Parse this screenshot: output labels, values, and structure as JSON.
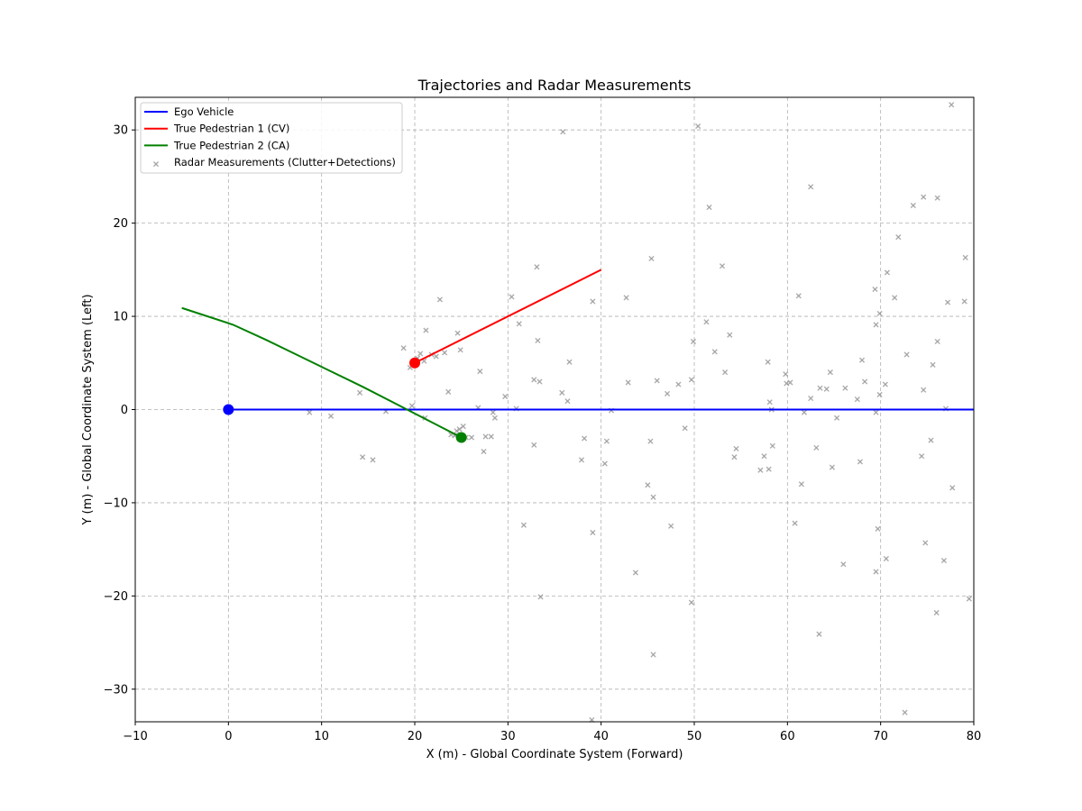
{
  "chart_data": {
    "type": "scatter",
    "title": "Trajectories and Radar Measurements",
    "xlabel": "X (m) - Global Coordinate System (Forward)",
    "ylabel": "Y (m) - Global Coordinate System (Left)",
    "xlim": [
      -10,
      80
    ],
    "ylim": [
      -33.5,
      33.5
    ],
    "xticks": [
      -10,
      0,
      10,
      20,
      30,
      40,
      50,
      60,
      70,
      80
    ],
    "yticks": [
      -30,
      -20,
      -10,
      0,
      10,
      20,
      30
    ],
    "xtick_labels": [
      "−10",
      "0",
      "10",
      "20",
      "30",
      "40",
      "50",
      "60",
      "70",
      "80"
    ],
    "ytick_labels": [
      "−30",
      "−20",
      "−10",
      "0",
      "10",
      "20",
      "30"
    ],
    "grid": true,
    "legend_position": "top-left",
    "series": [
      {
        "name": "Ego Vehicle",
        "kind": "line",
        "color": "#0000ff",
        "x": [
          0,
          80
        ],
        "y": [
          0,
          0
        ],
        "marker_at": [
          0,
          0
        ]
      },
      {
        "name": "True Pedestrian 1 (CV)",
        "kind": "line",
        "color": "#ff0000",
        "x": [
          20,
          40
        ],
        "y": [
          5,
          15
        ],
        "marker_at": [
          20,
          5
        ]
      },
      {
        "name": "True Pedestrian 2 (CA)",
        "kind": "line",
        "color": "#008000",
        "x": [
          25,
          21.5,
          18,
          14.5,
          11,
          7.5,
          4,
          0.5,
          -5
        ],
        "y": [
          -3,
          -1.2,
          0.6,
          2.4,
          4.1,
          5.8,
          7.5,
          9.1,
          10.9
        ],
        "marker_at": [
          25,
          -3
        ]
      },
      {
        "name": "Radar Measurements (Clutter+Detections)",
        "kind": "scatter",
        "color": "#999999",
        "points": [
          [
            77.6,
            32.7
          ],
          [
            50.4,
            30.4
          ],
          [
            35.9,
            29.8
          ],
          [
            62.5,
            23.9
          ],
          [
            74.6,
            22.8
          ],
          [
            76.1,
            22.7
          ],
          [
            73.5,
            21.9
          ],
          [
            51.6,
            21.7
          ],
          [
            71.9,
            18.5
          ],
          [
            79.1,
            16.3
          ],
          [
            45.4,
            16.2
          ],
          [
            53.0,
            15.4
          ],
          [
            33.1,
            15.3
          ],
          [
            70.7,
            14.7
          ],
          [
            69.4,
            12.9
          ],
          [
            61.2,
            12.2
          ],
          [
            30.4,
            12.1
          ],
          [
            71.5,
            12.0
          ],
          [
            42.7,
            12.0
          ],
          [
            22.7,
            11.8
          ],
          [
            39.1,
            11.6
          ],
          [
            79.0,
            11.6
          ],
          [
            77.2,
            11.5
          ],
          [
            69.9,
            10.3
          ],
          [
            51.3,
            9.4
          ],
          [
            31.2,
            9.2
          ],
          [
            69.5,
            9.1
          ],
          [
            21.2,
            8.5
          ],
          [
            24.6,
            8.2
          ],
          [
            53.8,
            8.0
          ],
          [
            49.9,
            7.3
          ],
          [
            33.2,
            7.4
          ],
          [
            76.1,
            7.3
          ],
          [
            18.8,
            6.6
          ],
          [
            24.9,
            6.4
          ],
          [
            52.2,
            6.2
          ],
          [
            23.2,
            6.1
          ],
          [
            20.6,
            6.0
          ],
          [
            21.8,
            5.9
          ],
          [
            72.8,
            5.9
          ],
          [
            22.3,
            5.7
          ],
          [
            20.3,
            5.5
          ],
          [
            68.0,
            5.3
          ],
          [
            21.0,
            5.2
          ],
          [
            36.6,
            5.1
          ],
          [
            57.9,
            5.1
          ],
          [
            19.5,
            4.5
          ],
          [
            75.6,
            4.8
          ],
          [
            27.0,
            4.1
          ],
          [
            53.3,
            4.0
          ],
          [
            64.6,
            4.0
          ],
          [
            59.8,
            3.8
          ],
          [
            33.4,
            3.0
          ],
          [
            42.9,
            2.9
          ],
          [
            46.0,
            3.1
          ],
          [
            49.7,
            3.2
          ],
          [
            32.8,
            3.2
          ],
          [
            60.3,
            2.9
          ],
          [
            59.9,
            2.8
          ],
          [
            48.3,
            2.7
          ],
          [
            68.3,
            3.0
          ],
          [
            70.5,
            2.7
          ],
          [
            63.5,
            2.3
          ],
          [
            66.2,
            2.3
          ],
          [
            64.2,
            2.2
          ],
          [
            74.6,
            2.1
          ],
          [
            23.6,
            1.9
          ],
          [
            14.1,
            1.8
          ],
          [
            35.8,
            1.8
          ],
          [
            47.1,
            1.7
          ],
          [
            69.9,
            1.6
          ],
          [
            29.7,
            1.4
          ],
          [
            62.5,
            1.2
          ],
          [
            67.5,
            1.1
          ],
          [
            36.4,
            0.9
          ],
          [
            58.1,
            0.8
          ],
          [
            19.7,
            0.4
          ],
          [
            26.8,
            0.2
          ],
          [
            30.9,
            0.1
          ],
          [
            58.3,
            0.0
          ],
          [
            41.1,
            -0.1
          ],
          [
            77.0,
            0.1
          ],
          [
            16.9,
            -0.2
          ],
          [
            8.7,
            -0.3
          ],
          [
            61.8,
            -0.3
          ],
          [
            69.5,
            -0.3
          ],
          [
            28.4,
            -0.3
          ],
          [
            11.0,
            -0.7
          ],
          [
            21.1,
            -0.9
          ],
          [
            28.6,
            -0.9
          ],
          [
            65.3,
            -0.9
          ],
          [
            49.0,
            -2.0
          ],
          [
            25.2,
            -1.8
          ],
          [
            24.8,
            -2.1
          ],
          [
            24.5,
            -2.3
          ],
          [
            23.9,
            -2.7
          ],
          [
            24.3,
            -2.8
          ],
          [
            27.6,
            -2.9
          ],
          [
            26.1,
            -3.0
          ],
          [
            28.2,
            -2.9
          ],
          [
            25.5,
            -3.0
          ],
          [
            38.2,
            -3.1
          ],
          [
            75.4,
            -3.3
          ],
          [
            40.6,
            -3.4
          ],
          [
            45.3,
            -3.4
          ],
          [
            32.8,
            -3.8
          ],
          [
            58.4,
            -3.9
          ],
          [
            63.1,
            -4.1
          ],
          [
            54.5,
            -4.2
          ],
          [
            27.4,
            -4.5
          ],
          [
            74.4,
            -5.0
          ],
          [
            14.4,
            -5.1
          ],
          [
            54.3,
            -5.1
          ],
          [
            57.5,
            -5.0
          ],
          [
            15.5,
            -5.4
          ],
          [
            37.9,
            -5.4
          ],
          [
            67.8,
            -5.6
          ],
          [
            40.4,
            -5.8
          ],
          [
            64.8,
            -6.2
          ],
          [
            58.0,
            -6.4
          ],
          [
            57.1,
            -6.5
          ],
          [
            45.0,
            -8.1
          ],
          [
            61.5,
            -8.0
          ],
          [
            77.7,
            -8.4
          ],
          [
            45.6,
            -9.4
          ],
          [
            60.8,
            -12.2
          ],
          [
            31.7,
            -12.4
          ],
          [
            47.5,
            -12.5
          ],
          [
            69.7,
            -12.8
          ],
          [
            39.1,
            -13.2
          ],
          [
            74.8,
            -14.3
          ],
          [
            70.6,
            -16.0
          ],
          [
            76.8,
            -16.2
          ],
          [
            66.0,
            -16.6
          ],
          [
            43.7,
            -17.5
          ],
          [
            69.5,
            -17.4
          ],
          [
            33.5,
            -20.1
          ],
          [
            49.7,
            -20.7
          ],
          [
            79.5,
            -20.3
          ],
          [
            76.0,
            -21.8
          ],
          [
            63.4,
            -24.1
          ],
          [
            45.6,
            -26.3
          ],
          [
            72.6,
            -32.5
          ],
          [
            39.0,
            -33.3
          ]
        ]
      }
    ]
  }
}
